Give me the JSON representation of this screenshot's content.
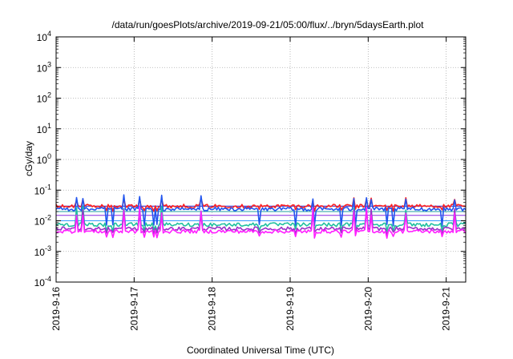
{
  "chart_data": {
    "type": "line",
    "title": "/data/run/goesPlots/archive/2019-09-21/05:00/flux/../bryn/5daysEarth.plot",
    "xlabel": "Coordinated Universal Time (UTC)",
    "ylabel": "cGy/day",
    "x_scale": "time",
    "y_scale": "log",
    "xlim": [
      "2019-09-16T00:00",
      "2019-09-21T06:00"
    ],
    "ylim": [
      0.0001,
      10000
    ],
    "x_ticks": [
      "2019-9-16",
      "2019-9-17",
      "2019-9-18",
      "2019-9-19",
      "2019-9-20",
      "2019-9-21"
    ],
    "y_ticks": [
      {
        "base": "10",
        "exp": "-4",
        "value": 0.0001
      },
      {
        "base": "10",
        "exp": "-3",
        "value": 0.001
      },
      {
        "base": "10",
        "exp": "-2",
        "value": 0.01
      },
      {
        "base": "10",
        "exp": "-1",
        "value": 0.1
      },
      {
        "base": "10",
        "exp": "0",
        "value": 1
      },
      {
        "base": "10",
        "exp": "1",
        "value": 10
      },
      {
        "base": "10",
        "exp": "2",
        "value": 100
      },
      {
        "base": "10",
        "exp": "3",
        "value": 1000
      },
      {
        "base": "10",
        "exp": "4",
        "value": 10000
      }
    ],
    "grid": true,
    "reference_lines": [
      {
        "color": "#1a1acc",
        "value": 0.03
      },
      {
        "color": "#1f9f9f",
        "value": 0.02
      },
      {
        "color": "#8a2be2",
        "value": 0.015
      },
      {
        "color": "#3399ff",
        "value": 0.01
      }
    ],
    "series": [
      {
        "color": "#ff2020",
        "baseline": 0.03,
        "spike": 0.06,
        "dip": 0.022
      },
      {
        "color": "#2255ee",
        "baseline": 0.024,
        "spike": 0.07,
        "dip": 0.007
      },
      {
        "color": "#20c0a0",
        "baseline": 0.0075,
        "spike": 0.03,
        "dip": 0.005
      },
      {
        "color": "#9b30c8",
        "baseline": 0.0055,
        "spike": 0.025,
        "dip": 0.004
      },
      {
        "color": "#ff20ff",
        "baseline": 0.0045,
        "spike": 0.03,
        "dip": 0.003
      }
    ]
  }
}
